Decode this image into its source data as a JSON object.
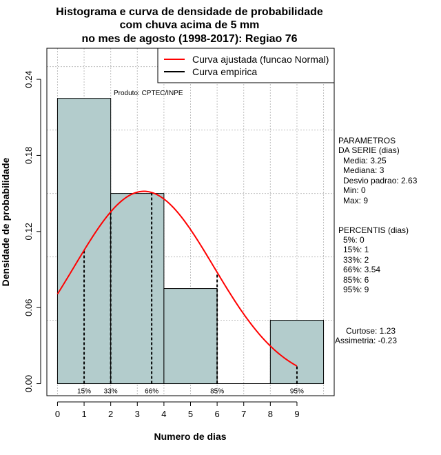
{
  "chart_data": {
    "type": "bar",
    "title_lines": [
      "Histograma e curva de densidade de probabilidade",
      "com chuva acima de 5 mm",
      "no mes de agosto (1998-2017): Regiao 76"
    ],
    "xlabel": "Numero de dias",
    "ylabel": "Densidade de probabilidade",
    "xlim": [
      -0.4,
      10.4
    ],
    "ylim": [
      -0.0095,
      0.2645
    ],
    "x_ticks": [
      0,
      1,
      2,
      3,
      4,
      5,
      6,
      7,
      8,
      9
    ],
    "y_ticks": [
      0.0,
      0.06,
      0.12,
      0.18,
      0.24
    ],
    "y_tick_labels": [
      "0.00",
      "0.06",
      "0.12",
      "0.18",
      "0.24"
    ],
    "grid_x": [
      0,
      1,
      2,
      3,
      4,
      5,
      6,
      7,
      8,
      9,
      10
    ],
    "grid_y": [
      0.05,
      0.1,
      0.15,
      0.2,
      0.25
    ],
    "bars": [
      {
        "x0": 0,
        "x1": 2,
        "density": 0.225
      },
      {
        "x0": 2,
        "x1": 4,
        "density": 0.15
      },
      {
        "x0": 4,
        "x1": 6,
        "density": 0.075
      },
      {
        "x0": 6,
        "x1": 8,
        "density": 0.0
      },
      {
        "x0": 8,
        "x1": 10,
        "density": 0.05
      }
    ],
    "bar_color": "#b3cccc",
    "fitted_curve": {
      "name": "Curva ajustada (funcao Normal)",
      "color": "#ff0000",
      "x_from": 0,
      "x_to": 9,
      "mean": 3.25,
      "sd": 2.63
    },
    "empirical_curve": {
      "name": "Curva empirica",
      "color": "#000000"
    },
    "percentile_markers": [
      {
        "x": 1,
        "label": "15%"
      },
      {
        "x": 2,
        "label": "33%"
      },
      {
        "x": 3.54,
        "label": "66%"
      },
      {
        "x": 6,
        "label": "85%"
      },
      {
        "x": 9,
        "label": "95%"
      }
    ],
    "annotation": "Produto: CPTEC/INPE",
    "legend_position": "top-right"
  },
  "stats": {
    "parametros_header_1": "PARAMETROS",
    "parametros_header_2": "DA SERIE (dias)",
    "media": "Media: 3.25",
    "mediana": "Mediana: 3",
    "desvio": "Desvio padrao: 2.63",
    "min": "Min: 0",
    "max": "Max: 9",
    "percentis_header": "PERCENTIS (dias)",
    "p5": "5%: 0",
    "p15": "15%: 1",
    "p33": "33%: 2",
    "p66": "66%: 3.54",
    "p85": "85%: 6",
    "p95": "95%: 9",
    "curtose": "Curtose: 1.23",
    "assimetria": "Assimetria: -0.23"
  }
}
